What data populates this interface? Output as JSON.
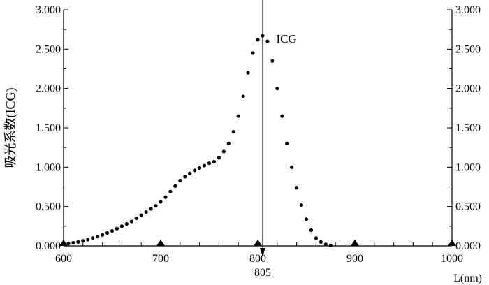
{
  "chart_data": {
    "type": "scatter",
    "title": "",
    "xlabel": "L(nm)",
    "ylabel": "吸光系数(ICG)",
    "xlim": [
      600,
      1000
    ],
    "ylim": [
      0,
      3
    ],
    "x_ticks": [
      600,
      700,
      800,
      900,
      1000
    ],
    "x_tick_labels": [
      "600",
      "700",
      "800",
      "900",
      "1000"
    ],
    "y_ticks": [
      0,
      0.5,
      1,
      1.5,
      2,
      2.5,
      3
    ],
    "y_tick_labels": [
      "0.000",
      "0.500",
      "1.000",
      "1.500",
      "2.000",
      "2.500",
      "3.000"
    ],
    "right_axis_tick_labels": [
      "0.000",
      "0.500",
      "1.000",
      "1.500",
      "2.000",
      "2.500",
      "3.000"
    ],
    "markers_x": [
      600,
      700,
      800,
      900,
      1000
    ],
    "peak_line": {
      "x": 805,
      "label": "805"
    },
    "series": [
      {
        "name": "ICG",
        "x": [
          605,
          610,
          615,
          620,
          625,
          630,
          635,
          640,
          645,
          650,
          655,
          660,
          665,
          670,
          675,
          680,
          685,
          690,
          695,
          700,
          705,
          710,
          715,
          720,
          725,
          730,
          735,
          740,
          745,
          750,
          755,
          760,
          765,
          770,
          775,
          780,
          785,
          790,
          795,
          800,
          805,
          810,
          815,
          820,
          825,
          830,
          835,
          840,
          845,
          850,
          855,
          860,
          865,
          870,
          875
        ],
        "y": [
          0.03,
          0.04,
          0.05,
          0.065,
          0.08,
          0.1,
          0.12,
          0.14,
          0.165,
          0.19,
          0.22,
          0.25,
          0.28,
          0.31,
          0.35,
          0.39,
          0.43,
          0.47,
          0.51,
          0.56,
          0.62,
          0.69,
          0.76,
          0.83,
          0.88,
          0.92,
          0.96,
          0.99,
          1.02,
          1.05,
          1.07,
          1.12,
          1.2,
          1.3,
          1.45,
          1.65,
          1.9,
          2.2,
          2.45,
          2.62,
          2.67,
          2.6,
          2.35,
          2.0,
          1.65,
          1.3,
          1.0,
          0.74,
          0.52,
          0.34,
          0.2,
          0.1,
          0.05,
          0.02,
          0.005
        ]
      }
    ],
    "annotations": [
      {
        "text": "ICG",
        "x": 809,
        "y": 2.62
      }
    ],
    "grid": false,
    "legend": "none"
  }
}
